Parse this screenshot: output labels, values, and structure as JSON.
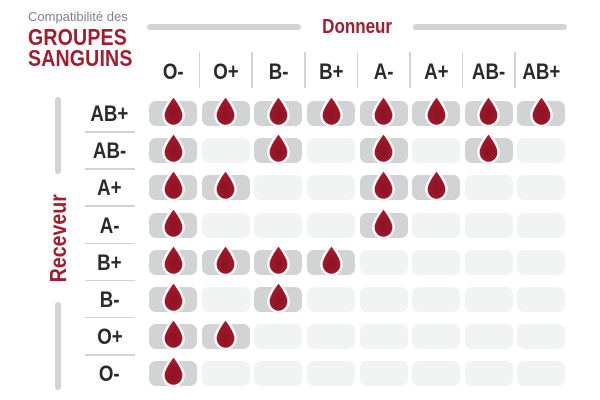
{
  "title": {
    "eyebrow": "Compatibilité des",
    "line1": "GROUPES",
    "line2": "SANGUINS"
  },
  "axis": {
    "donor": "Donneur",
    "receiver": "Receveur"
  },
  "chart_data": {
    "type": "heatmap",
    "title": "Compatibilité des GROUPES SANGUINS",
    "x_axis_label": "Donneur",
    "y_axis_label": "Receveur",
    "columns": [
      "O-",
      "O+",
      "B-",
      "B+",
      "A-",
      "A+",
      "AB-",
      "AB+"
    ],
    "rows": [
      "AB+",
      "AB-",
      "A+",
      "A-",
      "B+",
      "B-",
      "O+",
      "O-"
    ],
    "values": [
      [
        1,
        1,
        1,
        1,
        1,
        1,
        1,
        1
      ],
      [
        1,
        0,
        1,
        0,
        1,
        0,
        1,
        0
      ],
      [
        1,
        1,
        0,
        0,
        1,
        1,
        0,
        0
      ],
      [
        1,
        0,
        0,
        0,
        1,
        0,
        0,
        0
      ],
      [
        1,
        1,
        1,
        1,
        0,
        0,
        0,
        0
      ],
      [
        1,
        0,
        1,
        0,
        0,
        0,
        0,
        0
      ],
      [
        1,
        1,
        0,
        0,
        0,
        0,
        0,
        0
      ],
      [
        1,
        0,
        0,
        0,
        0,
        0,
        0,
        0
      ]
    ],
    "marker_icon": "blood-drop-icon",
    "legend_position": "none",
    "grid": "off"
  },
  "colors": {
    "accent_red": "#A11D30",
    "drop_red_center": "#8C1222",
    "drop_red_edge": "#AE2036",
    "cell_active": "#D1D3D4",
    "cell_empty": "#F2F3F3",
    "line_gray": "#D1D3D4",
    "eyebrow_gray": "#808285",
    "label_dark": "#2B2A2B",
    "background": "#FFFFFF"
  }
}
